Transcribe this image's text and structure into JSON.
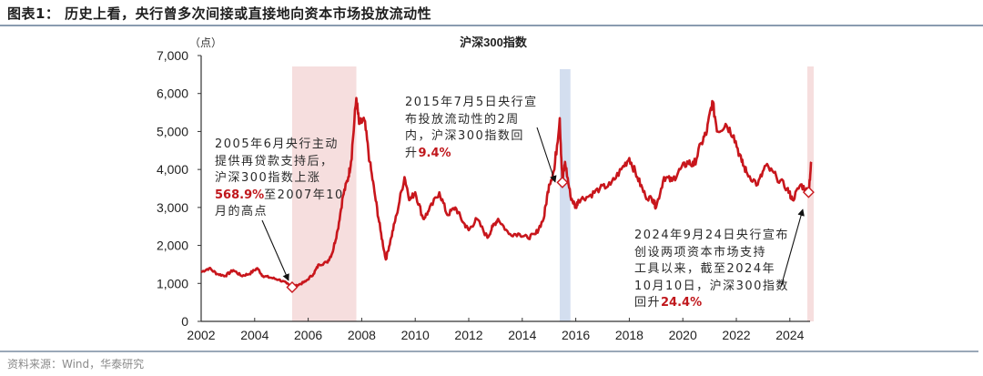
{
  "header": {
    "title": "图表1： 历史上看，央行曾多次间接或直接地向资本市场投放流动性"
  },
  "footer": {
    "source": "资料来源：Wind，华泰研究"
  },
  "colors": {
    "line": "#c8161c",
    "band_pink": "#f6dede",
    "band_blue": "#d3deef",
    "axis": "#333333",
    "highlight": "#c0171c"
  },
  "chart_data": {
    "type": "line",
    "title": "沪深300指数",
    "xlabel": "",
    "ylabel": "（点）",
    "ylim": [
      0,
      7000
    ],
    "xlim": [
      2002,
      2024.8
    ],
    "yticks": [
      0,
      1000,
      2000,
      3000,
      4000,
      5000,
      6000,
      7000
    ],
    "ytick_labels": [
      "0",
      "1,000",
      "2,000",
      "3,000",
      "4,000",
      "5,000",
      "6,000",
      "7,000"
    ],
    "xticks": [
      2002,
      2004,
      2006,
      2008,
      2010,
      2012,
      2014,
      2016,
      2018,
      2020,
      2022,
      2024
    ],
    "xtick_labels": [
      "2002",
      "2004",
      "2006",
      "2008",
      "2010",
      "2012",
      "2014",
      "2016",
      "2018",
      "2020",
      "2022",
      "2024"
    ],
    "grid": false,
    "legend": null,
    "series": [
      {
        "name": "沪深300指数",
        "x": [
          2002.0,
          2002.3,
          2002.6,
          2002.9,
          2003.2,
          2003.5,
          2003.8,
          2004.1,
          2004.3,
          2004.6,
          2004.9,
          2005.2,
          2005.4,
          2005.6,
          2005.9,
          2006.2,
          2006.4,
          2006.7,
          2006.9,
          2007.1,
          2007.3,
          2007.5,
          2007.6,
          2007.8,
          2007.9,
          2008.1,
          2008.3,
          2008.5,
          2008.7,
          2008.9,
          2009.1,
          2009.3,
          2009.6,
          2009.8,
          2010.0,
          2010.3,
          2010.5,
          2010.9,
          2011.2,
          2011.5,
          2011.8,
          2012.0,
          2012.3,
          2012.7,
          2012.9,
          2013.1,
          2013.5,
          2013.9,
          2014.2,
          2014.5,
          2014.8,
          2015.0,
          2015.2,
          2015.4,
          2015.5,
          2015.6,
          2015.8,
          2016.0,
          2016.1,
          2016.5,
          2016.9,
          2017.3,
          2017.7,
          2018.0,
          2018.3,
          2018.6,
          2018.9,
          2019.0,
          2019.3,
          2019.6,
          2019.9,
          2020.2,
          2020.4,
          2020.7,
          2020.9,
          2021.1,
          2021.3,
          2021.6,
          2021.9,
          2022.2,
          2022.4,
          2022.8,
          2023.1,
          2023.5,
          2023.9,
          2024.1,
          2024.4,
          2024.7,
          2024.8
        ],
        "values": [
          1300,
          1400,
          1250,
          1200,
          1350,
          1200,
          1250,
          1400,
          1200,
          1150,
          1100,
          1000,
          900,
          950,
          1050,
          1250,
          1500,
          1550,
          1800,
          2400,
          3300,
          3800,
          4200,
          5880,
          5200,
          5300,
          4200,
          3300,
          2400,
          1630,
          2200,
          2800,
          3800,
          3200,
          3400,
          2700,
          2900,
          3400,
          2800,
          3000,
          2600,
          2400,
          2700,
          2200,
          2500,
          2700,
          2300,
          2300,
          2200,
          2300,
          2700,
          3600,
          4000,
          5350,
          3660,
          4200,
          3300,
          3000,
          3200,
          3300,
          3500,
          3600,
          4000,
          4300,
          3800,
          3300,
          3200,
          3000,
          3800,
          3700,
          4000,
          4200,
          4100,
          4700,
          5000,
          5800,
          5000,
          5200,
          4900,
          4200,
          3900,
          3600,
          4100,
          3800,
          3500,
          3200,
          3600,
          3400,
          4200
        ]
      }
    ],
    "shaded_regions": [
      {
        "from": 2005.4,
        "to": 2007.8,
        "color": "pink"
      },
      {
        "from": 2015.4,
        "to": 2015.8,
        "color": "blue"
      },
      {
        "from": 2024.7,
        "to": 2024.9,
        "color": "pink"
      }
    ],
    "markers": [
      {
        "x": 2005.4,
        "y": 900
      },
      {
        "x": 2015.5,
        "y": 3660
      },
      {
        "x": 2024.7,
        "y": 3400
      }
    ],
    "annotations": [
      {
        "id": "a2005",
        "lines": [
          "2005年6月央行主动",
          "提供再贷款支持后，",
          "沪深300指数上涨"
        ],
        "highlight": "568.9%",
        "tail": "至2007年10",
        "last": "月的高点"
      },
      {
        "id": "a2015",
        "lines": [
          "2015年7月5日央行宣",
          "布投放流动性的2周",
          "内，沪深300指数回"
        ],
        "prefix": "升",
        "highlight": "9.4%"
      },
      {
        "id": "a2024",
        "lines": [
          "2024年9月24日央行宣布",
          "创设两项资本市场支持",
          "工具以来，截至2024年",
          "10月10日，沪深300指数"
        ],
        "prefix": "回升",
        "highlight": "24.4%"
      }
    ]
  }
}
